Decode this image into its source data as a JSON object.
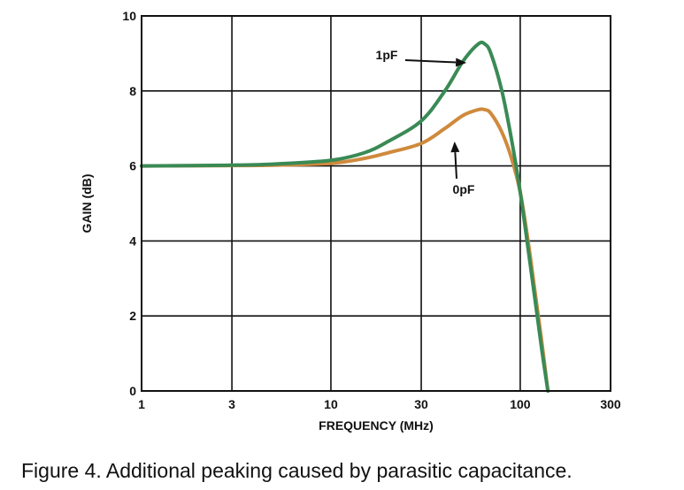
{
  "caption": "Figure 4. Additional peaking caused by parasitic capacitance.",
  "chart_data": {
    "type": "line",
    "title": "",
    "xlabel": "FREQUENCY (MHz)",
    "ylabel": "GAIN (dB)",
    "xscale": "log",
    "xlim": [
      1,
      300
    ],
    "ylim": [
      0,
      10
    ],
    "xticks": [
      1,
      3,
      10,
      30,
      100,
      300
    ],
    "xtick_labels": [
      "1",
      "3",
      "10",
      "30",
      "100",
      "300"
    ],
    "yticks": [
      0,
      2,
      4,
      6,
      8,
      10
    ],
    "ytick_labels": [
      "0",
      "2",
      "4",
      "6",
      "8",
      "10"
    ],
    "grid": true,
    "series": [
      {
        "name": "1pF",
        "color": "#3a8a55",
        "x": [
          1,
          3,
          5,
          10,
          15,
          20,
          30,
          40,
          50,
          60,
          65,
          70,
          80,
          90,
          100,
          110,
          120,
          130,
          140
        ],
        "y": [
          6.0,
          6.02,
          6.05,
          6.15,
          6.35,
          6.65,
          7.2,
          8.0,
          8.8,
          9.25,
          9.25,
          9.0,
          8.0,
          6.7,
          5.3,
          3.8,
          2.4,
          1.1,
          0.0
        ]
      },
      {
        "name": "0pF",
        "color": "#cf8a3c",
        "x": [
          1,
          3,
          5,
          10,
          15,
          20,
          30,
          40,
          50,
          60,
          65,
          70,
          80,
          90,
          100,
          110,
          120,
          130,
          140
        ],
        "y": [
          6.0,
          6.01,
          6.02,
          6.07,
          6.2,
          6.35,
          6.6,
          7.0,
          7.35,
          7.5,
          7.5,
          7.4,
          6.9,
          6.2,
          5.3,
          4.0,
          2.6,
          1.3,
          0.0
        ]
      }
    ],
    "annotations": [
      {
        "text": "1pF",
        "series": "1pF",
        "x": 52,
        "y": 8.75
      },
      {
        "text": "0pF",
        "series": "0pF",
        "x": 45,
        "y": 6.65
      }
    ]
  }
}
